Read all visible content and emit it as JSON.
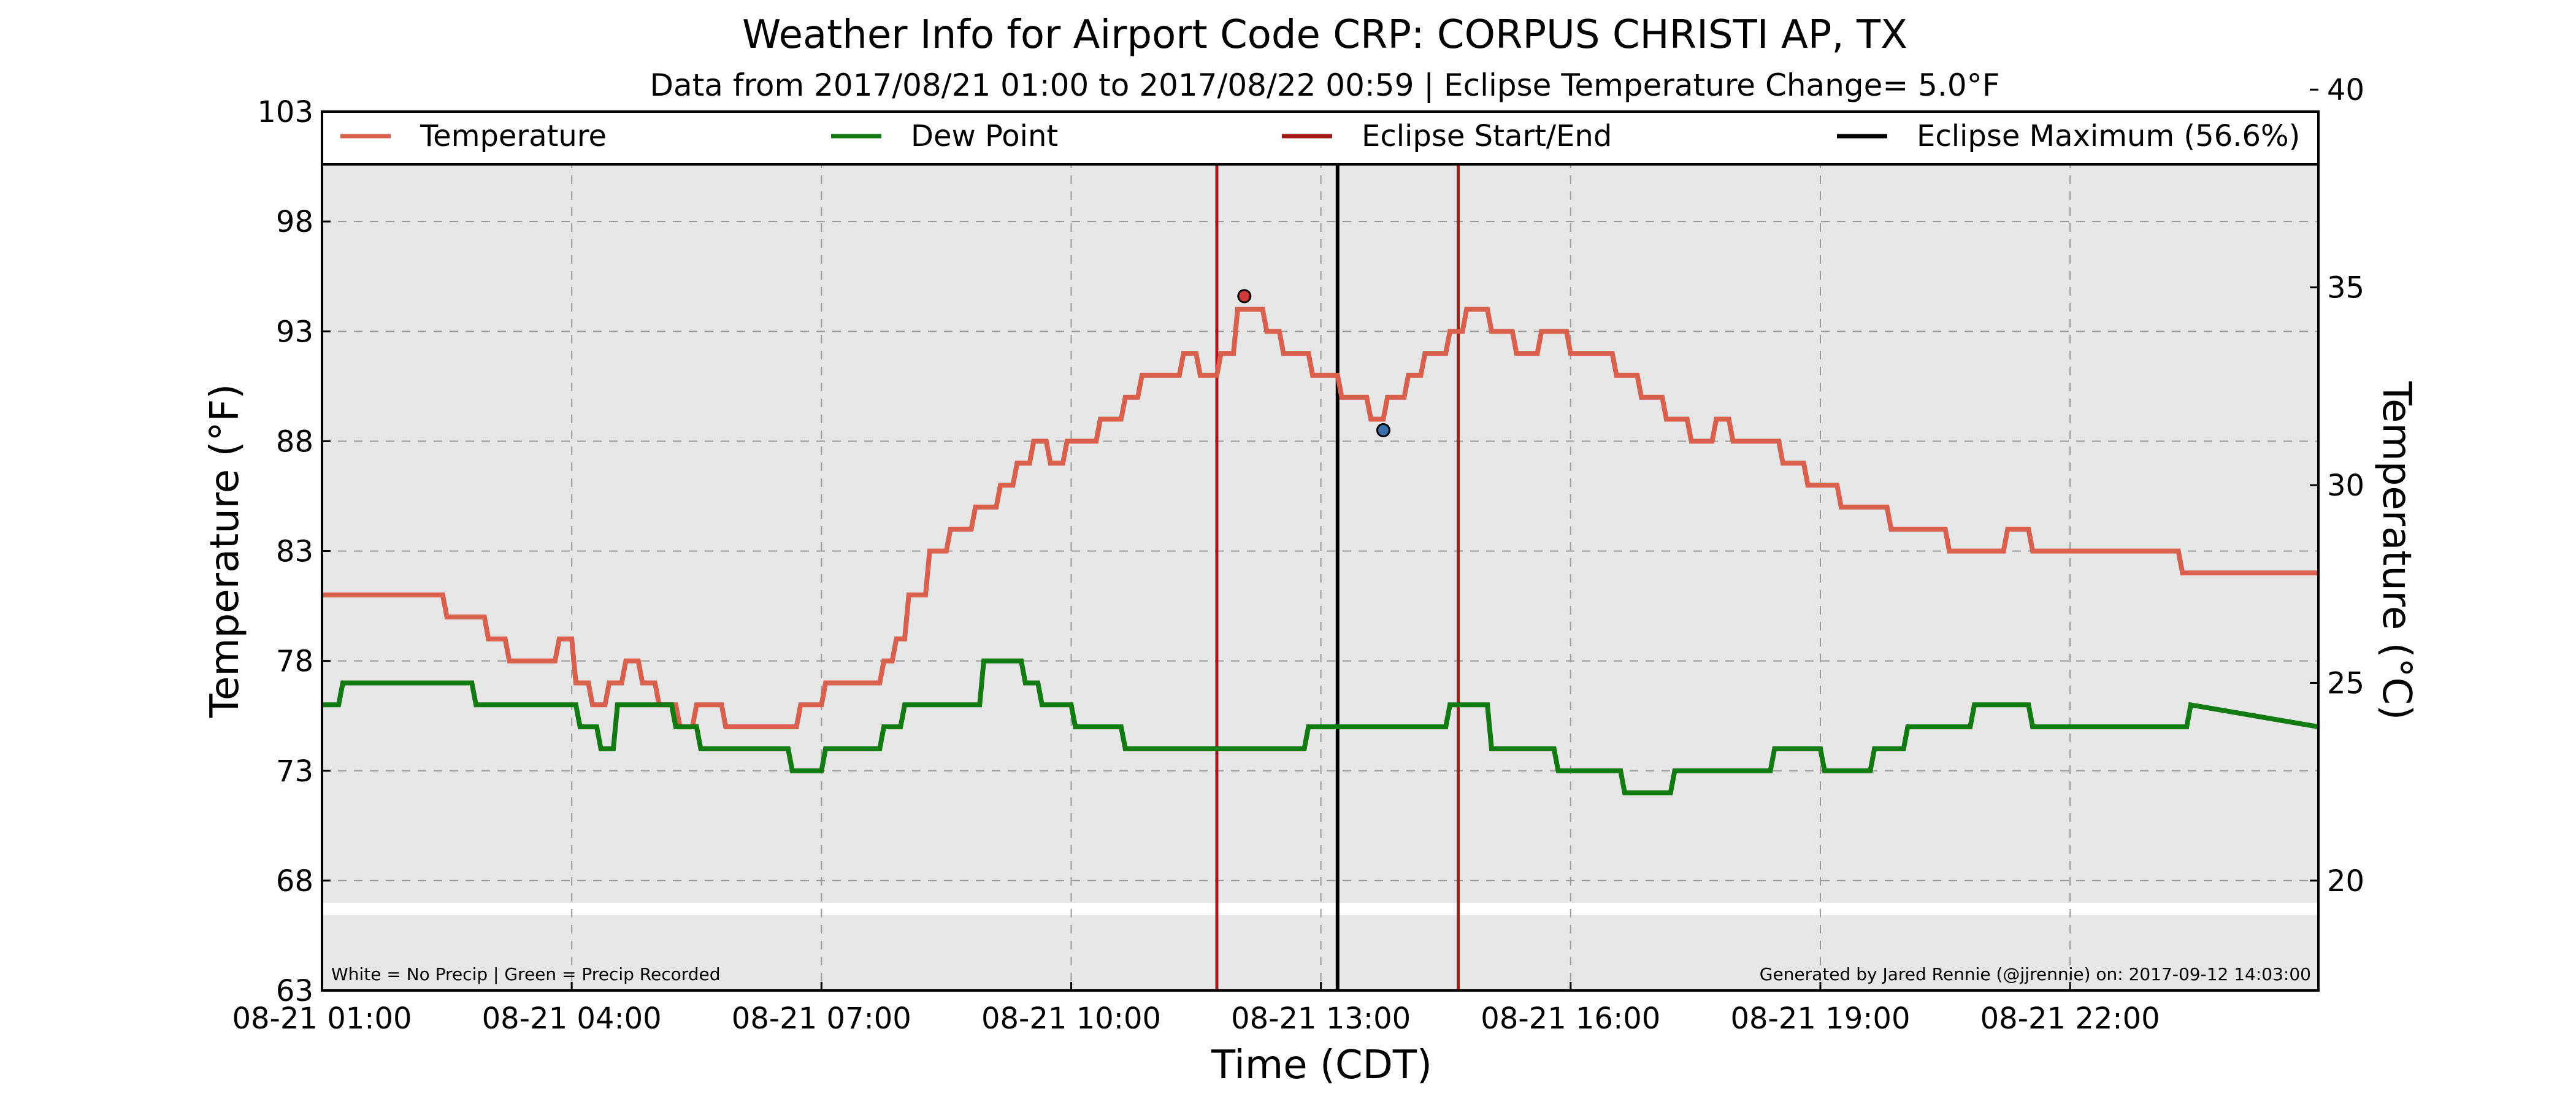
{
  "chart_data": {
    "type": "line",
    "title": "Weather Info for Airport Code CRP: CORPUS CHRISTI AP, TX",
    "subtitle": "Data from 2017/08/21 01:00 to 2017/08/22 00:59 | Eclipse Temperature Change= 5.0°F",
    "xlabel": "Time (CDT)",
    "ylabel_left": "Temperature (°F)",
    "ylabel_right": "Temperature (°C)",
    "xlim": [
      1.0,
      24.983
    ],
    "ylim": [
      63,
      103
    ],
    "x_tick_values": [
      1,
      4,
      7,
      10,
      13,
      16,
      19,
      22
    ],
    "x_tick_labels": [
      "08-21 01:00",
      "08-21 04:00",
      "08-21 07:00",
      "08-21 10:00",
      "08-21 13:00",
      "08-21 16:00",
      "08-21 19:00",
      "08-21 22:00"
    ],
    "y_ticks_left": [
      63,
      68,
      73,
      78,
      83,
      88,
      93,
      98,
      103
    ],
    "y_ticks_right": [
      20,
      25,
      30,
      35,
      40
    ],
    "grid": true,
    "legend_position": "top",
    "legend": [
      {
        "label": "Temperature",
        "color": "#d9604c"
      },
      {
        "label": "Dew Point",
        "color": "#117a11"
      },
      {
        "label": "Eclipse Start/End",
        "color": "#a31a1a"
      },
      {
        "label": "Eclipse Maximum (56.6%)",
        "color": "#000000"
      }
    ],
    "series": [
      {
        "name": "Temperature",
        "color": "#d9604c",
        "x": [
          1.0,
          2.45,
          2.5,
          2.95,
          3.0,
          3.2,
          3.25,
          3.8,
          3.85,
          4.0,
          4.05,
          4.2,
          4.25,
          4.4,
          4.45,
          4.6,
          4.65,
          4.8,
          4.85,
          5.0,
          5.05,
          5.25,
          5.3,
          5.45,
          5.5,
          5.8,
          5.85,
          5.95,
          6.0,
          6.7,
          6.75,
          7.0,
          7.05,
          7.7,
          7.75,
          7.85,
          7.9,
          8.0,
          8.05,
          8.25,
          8.3,
          8.5,
          8.55,
          8.8,
          8.85,
          9.1,
          9.15,
          9.3,
          9.35,
          9.5,
          9.55,
          9.7,
          9.75,
          9.9,
          9.95,
          10.3,
          10.35,
          10.6,
          10.65,
          10.8,
          10.85,
          11.0,
          11.05,
          11.3,
          11.35,
          11.5,
          11.55,
          11.75,
          11.8,
          11.95,
          12.0,
          12.3,
          12.35,
          12.5,
          12.55,
          12.85,
          12.9,
          13.2,
          13.25,
          13.55,
          13.6,
          13.75,
          13.8,
          14.0,
          14.05,
          14.2,
          14.25,
          14.5,
          14.55,
          14.7,
          14.75,
          15.0,
          15.05,
          15.3,
          15.35,
          15.6,
          15.65,
          15.95,
          16.0,
          16.5,
          16.55,
          16.8,
          16.85,
          17.1,
          17.15,
          17.4,
          17.45,
          17.7,
          17.75,
          17.9,
          17.95,
          18.5,
          18.55,
          18.8,
          18.85,
          19.2,
          19.25,
          19.5,
          19.55,
          19.8,
          19.85,
          20.5,
          20.55,
          21.2,
          21.25,
          21.5,
          21.55,
          21.7,
          21.75,
          22.0,
          22.05,
          23.3,
          23.35,
          24.983
        ],
        "y": [
          81,
          81,
          80,
          80,
          79,
          79,
          78,
          78,
          79,
          79,
          77,
          77,
          76,
          76,
          77,
          77,
          78,
          78,
          77,
          77,
          76,
          76,
          75,
          75,
          76,
          76,
          75,
          75,
          75,
          75,
          76,
          76,
          77,
          77,
          78,
          78,
          79,
          79,
          81,
          81,
          83,
          83,
          84,
          84,
          85,
          85,
          86,
          86,
          87,
          87,
          88,
          88,
          87,
          87,
          88,
          88,
          89,
          89,
          90,
          90,
          91,
          91,
          91,
          91,
          92,
          92,
          91,
          91,
          92,
          92,
          94,
          94,
          93,
          93,
          92,
          92,
          91,
          91,
          90,
          90,
          89,
          89,
          90,
          90,
          91,
          91,
          92,
          92,
          93,
          93,
          94,
          94,
          93,
          93,
          92,
          92,
          93,
          93,
          92,
          92,
          91,
          91,
          90,
          90,
          89,
          89,
          88,
          88,
          89,
          89,
          88,
          88,
          87,
          87,
          86,
          86,
          85,
          85,
          85,
          85,
          84,
          84,
          83,
          83,
          84,
          84,
          83,
          83,
          83,
          83,
          83,
          83,
          82,
          82
        ]
      },
      {
        "name": "Dew Point",
        "color": "#117a11",
        "x": [
          1.0,
          1.2,
          1.25,
          2.8,
          2.85,
          4.05,
          4.1,
          4.3,
          4.35,
          4.5,
          4.55,
          5.2,
          5.25,
          5.5,
          5.55,
          6.1,
          6.15,
          6.6,
          6.65,
          7.0,
          7.05,
          7.7,
          7.75,
          7.95,
          8.0,
          8.9,
          8.95,
          9.4,
          9.45,
          9.6,
          9.65,
          10.0,
          10.05,
          10.6,
          10.65,
          11.6,
          11.65,
          12.8,
          12.85,
          14.5,
          14.55,
          15.0,
          15.05,
          15.8,
          15.85,
          16.6,
          16.65,
          17.2,
          17.25,
          18.4,
          18.45,
          19.0,
          19.05,
          19.6,
          19.65,
          20.0,
          20.05,
          20.8,
          20.85,
          21.2,
          21.25,
          21.5,
          21.55,
          23.4,
          23.45,
          24.983
        ],
        "y": [
          76,
          76,
          77,
          77,
          76,
          76,
          75,
          75,
          74,
          74,
          76,
          76,
          75,
          75,
          74,
          74,
          74,
          74,
          73,
          73,
          74,
          74,
          75,
          75,
          76,
          76,
          78,
          78,
          77,
          77,
          76,
          76,
          75,
          75,
          74,
          74,
          74,
          74,
          75,
          75,
          76,
          76,
          74,
          74,
          73,
          73,
          72,
          72,
          73,
          73,
          74,
          74,
          73,
          73,
          74,
          74,
          75,
          75,
          76,
          76,
          76,
          76,
          75,
          75,
          76,
          75
        ]
      }
    ],
    "eclipse_start": 11.75,
    "eclipse_end": 14.65,
    "eclipse_max": 13.2,
    "markers": [
      {
        "name": "Temperature peak before maximum",
        "x": 12.08,
        "y": 94.6,
        "color": "#cf3a3a"
      },
      {
        "name": "Temperature minimum near maximum",
        "x": 13.75,
        "y": 88.5,
        "color": "#3a6fb0"
      }
    ],
    "notes": {
      "precip_legend": "White = No Precip | Green = Precip Recorded",
      "credit": "Generated by Jared Rennie (@jjrennie) on: 2017-09-12 14:03:00"
    }
  }
}
